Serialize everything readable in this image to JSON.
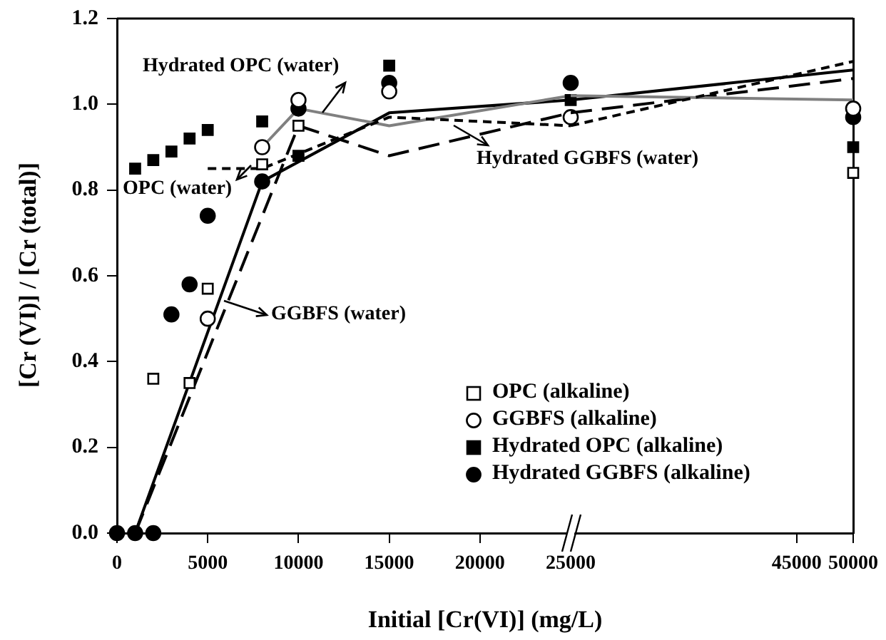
{
  "chart_data": [
    {
      "type": "scatter",
      "xlabel": "Initial [Cr(VI)] (mg/L)",
      "ylabel": "[Cr (VI)] / [Cr (total)]",
      "xlim": [
        0,
        25000
      ],
      "xticks": [
        0,
        5000,
        10000,
        15000,
        20000,
        25000
      ],
      "ylim": [
        0,
        1.2
      ],
      "yticks": [
        {
          "value": 0,
          "label": "0.0"
        },
        0.2,
        0.4,
        0.6,
        0.8,
        {
          "value": 1,
          "label": "1.0"
        },
        1.2
      ],
      "legend": "bottom right",
      "series": [
        {
          "name": "OPC (alkaline)",
          "marker": "square",
          "color": "#ffffff",
          "x": [
            2000,
            4000,
            5000,
            8000,
            10000
          ],
          "values": [
            0.36,
            0.35,
            0.57,
            0.86,
            0.95
          ]
        },
        {
          "name": "GGBFS (alkaline)",
          "marker": "circle",
          "color": "#ffffff",
          "x": [
            5000,
            8000,
            10000,
            15000,
            25000
          ],
          "values": [
            0.5,
            0.9,
            1.01,
            1.03,
            0.97
          ]
        },
        {
          "name": "Hydrated OPC (alkaline)",
          "marker": "square",
          "color": "#000000",
          "x": [
            1000,
            2000,
            3000,
            4000,
            5000,
            8000,
            10000,
            15000,
            25000
          ],
          "values": [
            0.85,
            0.87,
            0.89,
            0.92,
            0.94,
            0.96,
            0.88,
            1.09,
            1.01
          ]
        },
        {
          "name": "Hydrated GGBFS (alkaline)",
          "marker": "circle",
          "color": "#000000",
          "x": [
            0,
            1000,
            2000,
            3000,
            4000,
            5000,
            8000,
            10000,
            15000,
            25000
          ],
          "values": [
            0,
            0,
            0,
            0.51,
            0.58,
            0.74,
            0.82,
            0.99,
            1.05,
            1.05
          ]
        },
        {
          "name": "OPC (water)",
          "type": "line",
          "line_style": "dashed",
          "color": "#000000",
          "x": [
            5000,
            8000,
            15000,
            25000
          ],
          "values": [
            0.85,
            0.85,
            0.97,
            0.95
          ]
        },
        {
          "name": "Hydrated OPC (water)",
          "type": "line",
          "line_style": "solid",
          "color": "#808080",
          "x": [
            8000,
            10000,
            15000,
            25000
          ],
          "values": [
            0.9,
            0.99,
            0.95,
            1.02
          ]
        },
        {
          "name": "GGBFS (water)",
          "type": "line",
          "line_style": "solid",
          "color": "#000000",
          "x": [
            1000,
            8000,
            15000,
            25000
          ],
          "values": [
            0,
            0.82,
            0.98,
            1.01
          ]
        },
        {
          "name": "Hydrated GGBFS (water)",
          "type": "line",
          "line_style": "dashed",
          "color": "#000000",
          "x": [
            1000,
            10000,
            15000,
            25000
          ],
          "values": [
            0,
            0.95,
            0.88,
            0.98
          ]
        }
      ]
    },
    {
      "type": "scatter",
      "xlim": [
        25000,
        50000
      ],
      "xticks": [
        45000,
        50000
      ],
      "ylim": [
        0,
        1.2
      ],
      "tick_labels": "x",
      "series": [
        {
          "marker": "square",
          "color": "#ffffff",
          "x": [
            50000
          ],
          "values": [
            0.84
          ]
        },
        {
          "marker": "circle",
          "color": "#ffffff",
          "x": [
            50000
          ],
          "values": [
            0.99
          ]
        },
        {
          "marker": "square",
          "color": "#000000",
          "x": [
            50000
          ],
          "values": [
            0.9
          ]
        },
        {
          "marker": "circle",
          "color": "#000000",
          "x": [
            50000
          ],
          "values": [
            0.97
          ]
        },
        {
          "type": "line",
          "line_style": "dashed",
          "color": "#000000",
          "x": [
            25000,
            50000
          ],
          "values": [
            0.95,
            1.1
          ]
        },
        {
          "type": "line",
          "line_style": "solid",
          "color": "#808080",
          "x": [
            25000,
            50000
          ],
          "values": [
            1.02,
            1.01
          ]
        },
        {
          "type": "line",
          "line_style": "solid",
          "color": "#000000",
          "x": [
            25000,
            50000
          ],
          "values": [
            1.01,
            1.08
          ]
        },
        {
          "type": "line",
          "line_style": "dashed",
          "color": "#000000",
          "x": [
            25000,
            50000
          ],
          "values": [
            0.98,
            1.06
          ]
        }
      ]
    }
  ]
}
